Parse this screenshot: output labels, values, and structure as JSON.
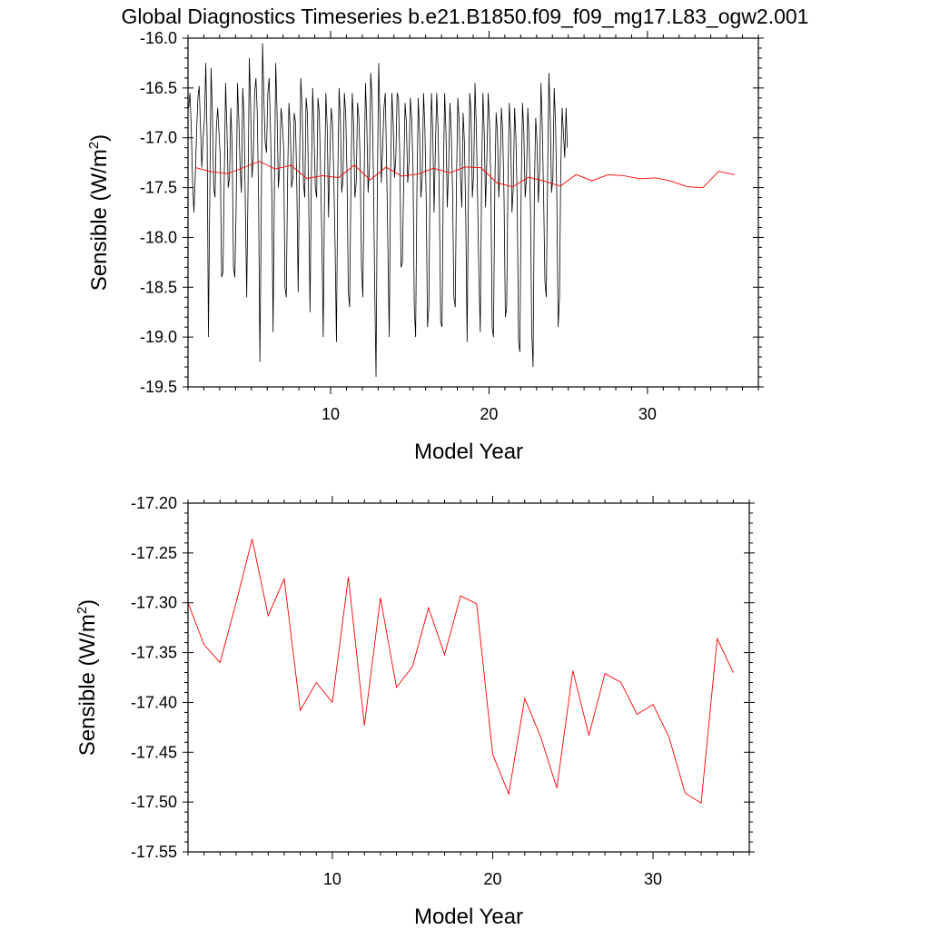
{
  "title": "Global Diagnostics Timeseries b.e21.B1850.f09_f09_mg17.L83_ogw2.001",
  "colors": {
    "monthly": "#000000",
    "annual": "#ff0000"
  },
  "chart_data": [
    {
      "type": "line",
      "xlabel": "Model Year",
      "ylabel_main": "Sensible (W/m",
      "ylabel_sup": "2",
      "ylabel_close": ")",
      "xlim": [
        1,
        37
      ],
      "ylim": [
        -19.5,
        -16.0
      ],
      "yticks": [
        "-16.0",
        "-16.5",
        "-17.0",
        "-17.5",
        "-18.0",
        "-18.5",
        "-19.0",
        "-19.5"
      ],
      "xticks": [
        "10",
        "20",
        "30"
      ],
      "xtick_values": [
        10,
        20,
        30
      ],
      "series": [
        {
          "kind": "monthly",
          "color": "#000000",
          "start_x": 1.04,
          "step": 0.0833,
          "values": [
            -16.7,
            -16.55,
            -16.9,
            -17.45,
            -17.75,
            -17.4,
            -16.95,
            -16.6,
            -16.48,
            -16.9,
            -17.3,
            -17.0,
            -16.8,
            -16.25,
            -17.0,
            -19.0,
            -17.6,
            -16.3,
            -16.75,
            -17.5,
            -17.6,
            -16.9,
            -16.7,
            -16.95,
            -17.2,
            -18.4,
            -18.35,
            -17.4,
            -16.45,
            -16.9,
            -17.5,
            -17.4,
            -16.7,
            -17.1,
            -18.3,
            -18.4,
            -17.7,
            -16.45,
            -16.8,
            -17.3,
            -17.55,
            -16.5,
            -16.8,
            -17.7,
            -18.6,
            -17.5,
            -16.2,
            -16.7,
            -17.4,
            -17.2,
            -16.55,
            -16.4,
            -16.75,
            -17.6,
            -19.25,
            -17.8,
            -16.05,
            -16.6,
            -17.05,
            -17.15,
            -16.55,
            -16.4,
            -16.9,
            -17.55,
            -18.95,
            -17.5,
            -16.25,
            -16.75,
            -17.5,
            -17.3,
            -16.7,
            -16.85,
            -17.1,
            -18.5,
            -18.6,
            -17.4,
            -16.65,
            -16.9,
            -17.5,
            -17.4,
            -16.75,
            -16.85,
            -17.5,
            -18.55,
            -17.3,
            -16.4,
            -16.7,
            -17.45,
            -17.6,
            -16.6,
            -16.75,
            -17.65,
            -18.75,
            -17.4,
            -16.5,
            -16.95,
            -17.5,
            -17.6,
            -16.6,
            -16.75,
            -17.35,
            -18.05,
            -19.0,
            -17.5,
            -16.55,
            -16.9,
            -17.8,
            -17.2,
            -16.7,
            -16.85,
            -17.4,
            -18.1,
            -19.05,
            -17.4,
            -16.5,
            -16.8,
            -17.55,
            -17.4,
            -16.55,
            -16.75,
            -17.35,
            -18.55,
            -18.7,
            -17.45,
            -16.55,
            -16.85,
            -17.6,
            -17.45,
            -16.65,
            -16.8,
            -17.25,
            -18.3,
            -18.6,
            -17.4,
            -16.45,
            -16.85,
            -17.55,
            -17.3,
            -16.35,
            -16.6,
            -17.35,
            -18.5,
            -19.4,
            -17.5,
            -16.25,
            -16.8,
            -17.45,
            -17.1,
            -16.7,
            -16.55,
            -17.25,
            -18.1,
            -19.0,
            -17.4,
            -16.55,
            -16.85,
            -17.4,
            -17.2,
            -16.55,
            -16.6,
            -17.2,
            -18.3,
            -18.25,
            -17.4,
            -16.65,
            -16.85,
            -17.45,
            -17.25,
            -16.6,
            -16.8,
            -17.3,
            -18.7,
            -19.0,
            -17.5,
            -16.6,
            -16.95,
            -17.6,
            -17.4,
            -16.55,
            -16.9,
            -17.6,
            -18.9,
            -18.7,
            -17.3,
            -16.55,
            -16.95,
            -17.75,
            -17.1,
            -16.55,
            -16.9,
            -17.65,
            -18.85,
            -18.9,
            -17.4,
            -16.55,
            -16.95,
            -17.7,
            -17.3,
            -16.65,
            -16.95,
            -17.55,
            -18.6,
            -18.7,
            -17.4,
            -16.6,
            -16.85,
            -17.4,
            -17.7,
            -16.75,
            -17.05,
            -17.8,
            -19.05,
            -17.6,
            -16.55,
            -16.75,
            -17.6,
            -17.35,
            -16.45,
            -16.9,
            -17.65,
            -18.4,
            -18.95,
            -17.4,
            -16.55,
            -16.95,
            -17.7,
            -17.2,
            -16.55,
            -16.85,
            -17.5,
            -18.9,
            -19.0,
            -17.5,
            -16.75,
            -16.95,
            -17.6,
            -17.3,
            -16.7,
            -16.95,
            -17.6,
            -18.8,
            -18.7,
            -17.4,
            -16.65,
            -16.95,
            -17.75,
            -17.5,
            -16.7,
            -17.0,
            -17.65,
            -19.05,
            -19.15,
            -17.5,
            -16.65,
            -16.95,
            -17.6,
            -17.4,
            -16.7,
            -17.0,
            -17.7,
            -18.95,
            -19.3,
            -17.5,
            -16.8,
            -17.05,
            -17.65,
            -17.3,
            -16.45,
            -16.9,
            -17.6,
            -18.45,
            -18.6,
            -17.4,
            -16.35,
            -16.8,
            -17.55,
            -17.4,
            -16.5,
            -16.85,
            -17.6,
            -18.9,
            -18.6,
            -17.3,
            -16.7,
            -16.95,
            -17.2,
            -16.7,
            -17.1
          ]
        },
        {
          "kind": "annual",
          "color": "#ff0000",
          "start_x": 1.5,
          "step": 1,
          "values": [
            -17.3,
            -17.342,
            -17.36,
            -17.3,
            -17.236,
            -17.313,
            -17.276,
            -17.408,
            -17.38,
            -17.4,
            -17.274,
            -17.423,
            -17.295,
            -17.385,
            -17.364,
            -17.305,
            -17.352,
            -17.293,
            -17.301,
            -17.452,
            -17.492,
            -17.396,
            -17.435,
            -17.486,
            -17.368,
            -17.433,
            -17.371,
            -17.38,
            -17.412,
            -17.402,
            -17.435,
            -17.491,
            -17.501,
            -17.336,
            -17.37
          ]
        }
      ]
    },
    {
      "type": "line",
      "xlabel": "Model Year",
      "ylabel_main": "Sensible (W/m",
      "ylabel_sup": "2",
      "ylabel_close": ")",
      "xlim": [
        1,
        36
      ],
      "ylim": [
        -17.55,
        -17.2
      ],
      "yticks": [
        "-17.20",
        "-17.25",
        "-17.30",
        "-17.35",
        "-17.40",
        "-17.45",
        "-17.50",
        "-17.55"
      ],
      "xticks": [
        "10",
        "20",
        "30"
      ],
      "xtick_values": [
        10,
        20,
        30
      ],
      "series": [
        {
          "kind": "annual",
          "color": "#ff0000",
          "start_x": 1.0,
          "step": 1,
          "values": [
            -17.3,
            -17.342,
            -17.36,
            -17.3,
            -17.236,
            -17.313,
            -17.276,
            -17.408,
            -17.38,
            -17.4,
            -17.274,
            -17.423,
            -17.295,
            -17.385,
            -17.364,
            -17.305,
            -17.352,
            -17.293,
            -17.301,
            -17.452,
            -17.492,
            -17.396,
            -17.435,
            -17.486,
            -17.368,
            -17.433,
            -17.371,
            -17.38,
            -17.412,
            -17.402,
            -17.435,
            -17.491,
            -17.501,
            -17.336,
            -17.37
          ]
        }
      ]
    }
  ]
}
